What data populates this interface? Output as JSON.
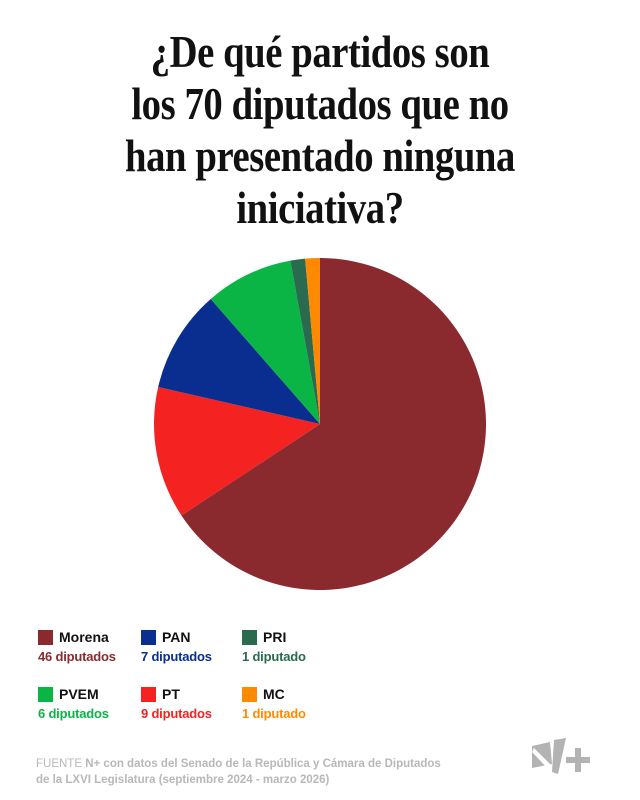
{
  "title": {
    "lines": [
      "¿De qué partidos son",
      "los 70 diputados que no",
      "han presentado ninguna",
      "iniciativa?"
    ]
  },
  "chart_data": {
    "type": "pie",
    "title": "¿De qué partidos son los 70 diputados que no han presentado ninguna iniciativa?",
    "total": 70,
    "categories": [
      "Morena",
      "PT",
      "PAN",
      "PVEM",
      "PRI",
      "MC"
    ],
    "values": [
      46,
      9,
      7,
      6,
      1,
      1
    ],
    "colors": [
      "#8B2A2E",
      "#F52222",
      "#0A2E8F",
      "#0AB545",
      "#2A6A4E",
      "#FF8A00"
    ],
    "start_angle": "12 o'clock, clockwise",
    "legend_position": "bottom"
  },
  "legend": [
    {
      "name": "Morena",
      "count": "46 diputados",
      "color": "#8B2A2E"
    },
    {
      "name": "PAN",
      "count": "7 diputados",
      "color": "#0A2E8F"
    },
    {
      "name": "PRI",
      "count": "1 diputado",
      "color": "#2A6A4E"
    },
    {
      "name": "PVEM",
      "count": "6 diputados",
      "color": "#0AB545"
    },
    {
      "name": "PT",
      "count": "9 diputados",
      "color": "#F52222"
    },
    {
      "name": "MC",
      "count": "1 diputado",
      "color": "#FF8A00"
    }
  ],
  "source": {
    "label": "FUENTE",
    "line1": "N+ con datos del Senado de la República y Cámara de Diputados",
    "line2": "de la LXVI Legislatura (septiembre 2024 - marzo 2026)"
  },
  "logo": {
    "text": "N+",
    "color": "#b3b3b3"
  }
}
